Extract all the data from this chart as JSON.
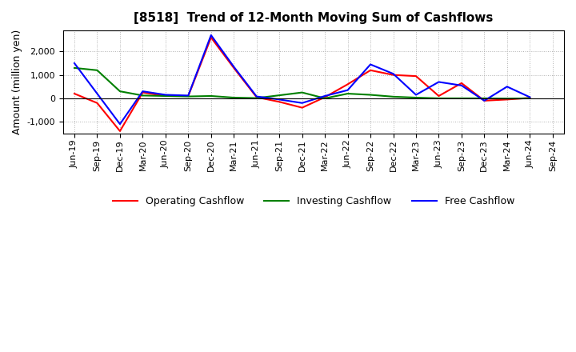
{
  "title": "[8518]  Trend of 12-Month Moving Sum of Cashflows",
  "ylabel": "Amount (million yen)",
  "x_labels": [
    "Jun-19",
    "Sep-19",
    "Dec-19",
    "Mar-20",
    "Jun-20",
    "Sep-20",
    "Dec-20",
    "Mar-21",
    "Jun-21",
    "Sep-21",
    "Dec-21",
    "Mar-22",
    "Jun-22",
    "Sep-22",
    "Dec-22",
    "Mar-23",
    "Jun-23",
    "Sep-23",
    "Dec-23",
    "Mar-24",
    "Jun-24",
    "Sep-24"
  ],
  "operating_cashflow": [
    200,
    -200,
    -1400,
    250,
    100,
    100,
    2600,
    1300,
    50,
    -150,
    -400,
    50,
    600,
    1200,
    1000,
    950,
    100,
    650,
    -100,
    -50,
    20,
    null
  ],
  "investing_cashflow": [
    1300,
    1200,
    300,
    120,
    100,
    80,
    100,
    30,
    10,
    130,
    250,
    0,
    200,
    150,
    70,
    30,
    0,
    0,
    0,
    -10,
    0,
    null
  ],
  "free_cashflow": [
    1500,
    200,
    -1100,
    300,
    150,
    120,
    2700,
    1350,
    80,
    -50,
    -200,
    100,
    350,
    1450,
    1050,
    150,
    700,
    550,
    -100,
    500,
    50,
    null
  ],
  "operating_color": "#ff0000",
  "investing_color": "#008000",
  "free_color": "#0000ff",
  "ylim": [
    -1500,
    2900
  ],
  "yticks": [
    -1000,
    0,
    1000,
    2000
  ],
  "background_color": "#ffffff",
  "grid_color": "#b0b0b0",
  "title_fontsize": 11,
  "legend_fontsize": 9,
  "ylabel_fontsize": 9,
  "tick_fontsize": 8
}
